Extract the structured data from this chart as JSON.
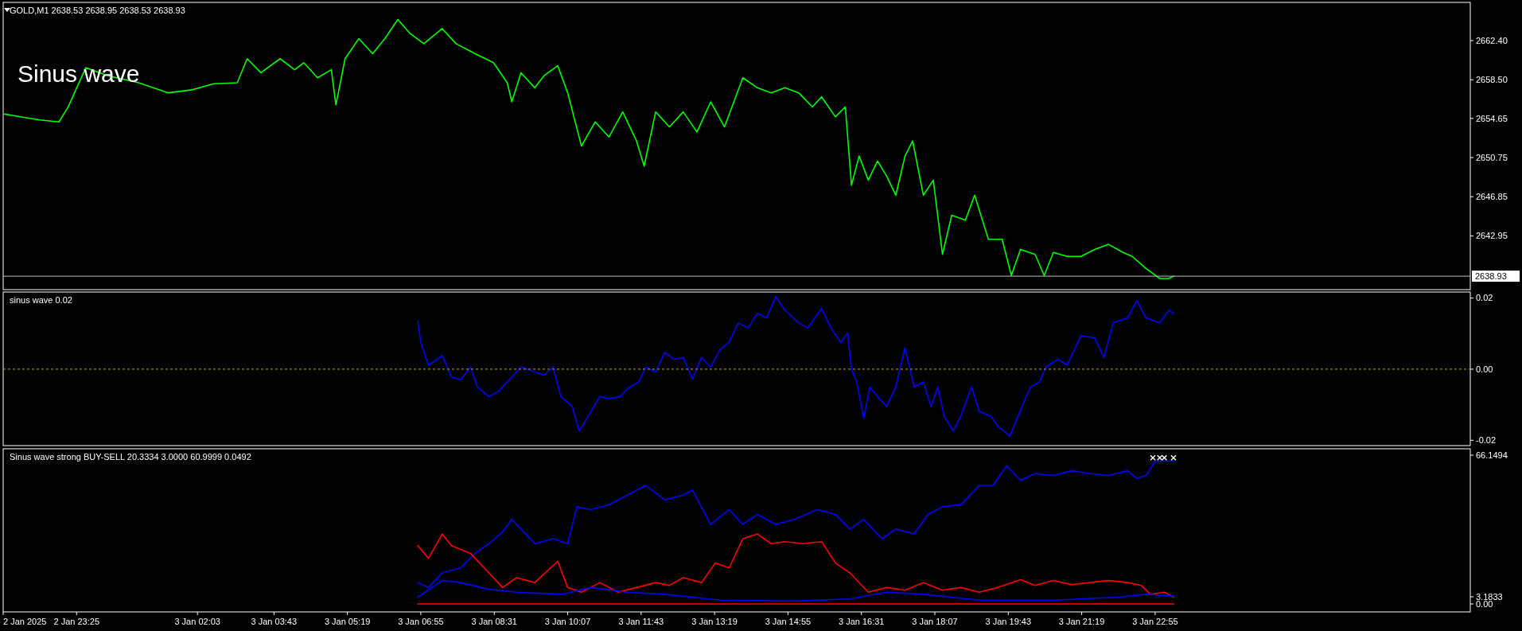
{
  "chart_data": [
    {
      "type": "line",
      "title": "GOLD,M1  2638.53 2638.95 2638.53 2638.93",
      "annotations": [
        "Sinus wave"
      ],
      "xlim": [
        "2025-01-02T21:49",
        "2025-01-04T05:47"
      ],
      "ylim": [
        2637.59,
        2666.21
      ],
      "yticks": [
        {
          "value": 2662.4,
          "label": "2662.40"
        },
        {
          "value": 2658.5,
          "label": "2658.50"
        },
        {
          "value": 2654.65,
          "label": "2654.65"
        },
        {
          "value": 2650.75,
          "label": "2650.75"
        },
        {
          "value": 2646.85,
          "label": "2646.85"
        },
        {
          "value": 2642.95,
          "label": "2642.95"
        }
      ],
      "tick_labels": "y",
      "ref_lines": [
        {
          "axis": "y",
          "value": 2638.93,
          "label": "2638.93",
          "color": "#c0c0c0"
        }
      ],
      "series": [
        {
          "color": "#00ff00",
          "x": [
            "2025-01-02T21:49",
            "2025-01-02T22:13",
            "2025-01-02T22:37",
            "2025-01-02T23:02",
            "2025-01-02T23:14",
            "2025-01-02T23:37",
            "2025-01-03T00:06",
            "2025-01-03T00:46",
            "2025-01-03T01:25",
            "2025-01-03T01:56",
            "2025-01-03T02:24",
            "2025-01-03T02:55",
            "2025-01-03T03:08",
            "2025-01-03T03:26",
            "2025-01-03T03:51",
            "2025-01-03T04:10",
            "2025-01-03T04:22",
            "2025-01-03T04:40",
            "2025-01-03T04:58",
            "2025-01-03T05:04",
            "2025-01-03T05:16",
            "2025-01-03T05:34",
            "2025-01-03T05:52",
            "2025-01-03T06:08",
            "2025-01-03T06:25",
            "2025-01-03T06:41",
            "2025-01-03T06:59",
            "2025-01-03T07:23",
            "2025-01-03T07:41",
            "2025-01-03T08:06",
            "2025-01-03T08:30",
            "2025-01-03T08:48",
            "2025-01-03T08:54",
            "2025-01-03T09:06",
            "2025-01-03T09:24",
            "2025-01-03T09:36",
            "2025-01-03T09:54",
            "2025-01-03T10:07",
            "2025-01-03T10:25",
            "2025-01-03T10:43",
            "2025-01-03T11:01",
            "2025-01-03T11:19",
            "2025-01-03T11:37",
            "2025-01-03T11:47",
            "2025-01-03T12:02",
            "2025-01-03T12:20",
            "2025-01-03T12:38",
            "2025-01-03T12:56",
            "2025-01-03T13:14",
            "2025-01-03T13:32",
            "2025-01-03T13:56",
            "2025-01-03T14:15",
            "2025-01-03T14:33",
            "2025-01-03T14:51",
            "2025-01-03T15:09",
            "2025-01-03T15:27",
            "2025-01-03T15:39",
            "2025-01-03T15:57",
            "2025-01-03T16:10",
            "2025-01-03T16:18",
            "2025-01-03T16:28",
            "2025-01-03T16:40",
            "2025-01-03T16:52",
            "2025-01-03T17:04",
            "2025-01-03T17:16",
            "2025-01-03T17:28",
            "2025-01-03T17:38",
            "2025-01-03T17:52",
            "2025-01-03T18:05",
            "2025-01-03T18:17",
            "2025-01-03T18:29",
            "2025-01-03T18:47",
            "2025-01-03T18:59",
            "2025-01-03T19:17",
            "2025-01-03T19:35",
            "2025-01-03T19:47",
            "2025-01-03T19:59",
            "2025-01-03T20:18",
            "2025-01-03T20:30",
            "2025-01-03T20:42",
            "2025-01-03T21:00",
            "2025-01-03T21:18",
            "2025-01-03T21:36",
            "2025-01-03T21:54",
            "2025-01-03T22:13",
            "2025-01-03T22:25",
            "2025-01-03T22:43",
            "2025-01-03T23:01",
            "2025-01-03T23:13",
            "2025-01-03T23:19"
          ],
          "values": [
            2655.1,
            2654.8,
            2654.5,
            2654.3,
            2655.8,
            2659.7,
            2658.9,
            2658.2,
            2657.2,
            2657.5,
            2658.1,
            2658.2,
            2660.6,
            2659.2,
            2660.6,
            2659.5,
            2660.2,
            2658.7,
            2659.5,
            2656.0,
            2660.6,
            2662.6,
            2661.1,
            2662.6,
            2664.5,
            2663.1,
            2662.1,
            2663.6,
            2662.1,
            2661.1,
            2660.2,
            2658.2,
            2656.3,
            2659.2,
            2657.7,
            2658.9,
            2659.9,
            2657.2,
            2651.9,
            2654.3,
            2652.8,
            2655.3,
            2652.4,
            2649.9,
            2655.3,
            2653.8,
            2655.3,
            2653.3,
            2656.3,
            2653.8,
            2658.7,
            2657.7,
            2657.2,
            2657.7,
            2657.2,
            2655.8,
            2656.8,
            2654.8,
            2655.8,
            2648.0,
            2650.9,
            2648.5,
            2650.4,
            2648.9,
            2647.0,
            2650.9,
            2652.4,
            2647.0,
            2648.5,
            2641.1,
            2645.0,
            2644.5,
            2647.0,
            2642.6,
            2642.6,
            2639.0,
            2641.6,
            2641.1,
            2639.0,
            2641.3,
            2640.9,
            2640.9,
            2641.6,
            2642.1,
            2641.3,
            2640.9,
            2639.7,
            2638.7,
            2638.7,
            2638.93
          ]
        }
      ]
    },
    {
      "type": "line",
      "title": "sinus wave 0.02",
      "xlim": [
        "2025-01-02T21:49",
        "2025-01-04T05:47"
      ],
      "ylim": [
        -0.0215,
        0.0217
      ],
      "yticks": [
        {
          "value": 0.02,
          "label": "0.02"
        },
        {
          "value": 0,
          "label": "0.00"
        },
        {
          "value": -0.02,
          "label": "-0.02"
        }
      ],
      "tick_labels": "y",
      "ref_lines": [
        {
          "axis": "y",
          "value": 0,
          "color": "#d4a017",
          "line_style": "dashed"
        }
      ],
      "series": [
        {
          "color": "#0000ff",
          "x": [
            "2025-01-03T06:51",
            "2025-01-03T06:55",
            "2025-01-03T07:05",
            "2025-01-03T07:17",
            "2025-01-03T07:23",
            "2025-01-03T07:35",
            "2025-01-03T07:47",
            "2025-01-03T08:00",
            "2025-01-03T08:09",
            "2025-01-03T08:24",
            "2025-01-03T08:36",
            "2025-01-03T08:54",
            "2025-01-03T09:06",
            "2025-01-03T09:24",
            "2025-01-03T09:36",
            "2025-01-03T09:48",
            "2025-01-03T09:58",
            "2025-01-03T10:13",
            "2025-01-03T10:22",
            "2025-01-03T10:34",
            "2025-01-03T10:49",
            "2025-01-03T11:01",
            "2025-01-03T11:16",
            "2025-01-03T11:25",
            "2025-01-03T11:40",
            "2025-01-03T11:49",
            "2025-01-03T12:02",
            "2025-01-03T12:14",
            "2025-01-03T12:26",
            "2025-01-03T12:38",
            "2025-01-03T12:50",
            "2025-01-03T13:02",
            "2025-01-03T13:14",
            "2025-01-03T13:26",
            "2025-01-03T13:38",
            "2025-01-03T13:50",
            "2025-01-03T14:03",
            "2025-01-03T14:15",
            "2025-01-03T14:27",
            "2025-01-03T14:39",
            "2025-01-03T14:51",
            "2025-01-03T15:09",
            "2025-01-03T15:21",
            "2025-01-03T15:39",
            "2025-01-03T15:51",
            "2025-01-03T16:04",
            "2025-01-03T16:13",
            "2025-01-03T16:18",
            "2025-01-03T16:25",
            "2025-01-03T16:34",
            "2025-01-03T16:42",
            "2025-01-03T16:52",
            "2025-01-03T17:04",
            "2025-01-03T17:16",
            "2025-01-03T17:28",
            "2025-01-03T17:40",
            "2025-01-03T17:52",
            "2025-01-03T18:02",
            "2025-01-03T18:11",
            "2025-01-03T18:19",
            "2025-01-03T18:31",
            "2025-01-03T18:41",
            "2025-01-03T18:55",
            "2025-01-03T19:05",
            "2025-01-03T19:20",
            "2025-01-03T19:29",
            "2025-01-03T19:45",
            "2025-01-03T19:53",
            "2025-01-03T20:12",
            "2025-01-03T20:24",
            "2025-01-03T20:32",
            "2025-01-03T20:48",
            "2025-01-03T21:00",
            "2025-01-03T21:18",
            "2025-01-03T21:36",
            "2025-01-03T21:48",
            "2025-01-03T22:00",
            "2025-01-03T22:19",
            "2025-01-03T22:31",
            "2025-01-03T22:43",
            "2025-01-03T23:01",
            "2025-01-03T23:13",
            "2025-01-03T23:19"
          ],
          "values": [
            0.0135,
            0.0075,
            0.0011,
            0.0028,
            0.0039,
            -0.0022,
            -0.003,
            0.0006,
            -0.005,
            -0.0077,
            -0.0063,
            -0.0022,
            0.0006,
            -0.0008,
            -0.0017,
            0.0006,
            -0.0077,
            -0.0105,
            -0.0174,
            -0.0132,
            -0.0077,
            -0.0083,
            -0.0077,
            -0.0055,
            -0.0036,
            0.0006,
            -0.0008,
            0.0047,
            0.0028,
            0.0033,
            -0.0028,
            0.0033,
            0.0006,
            0.0055,
            0.0075,
            0.013,
            0.0116,
            0.0157,
            0.0144,
            0.0204,
            0.0166,
            0.013,
            0.0116,
            0.0171,
            0.0116,
            0.0075,
            0.0102,
            0,
            -0.0036,
            -0.0138,
            -0.005,
            -0.0077,
            -0.0105,
            -0.005,
            0.0061,
            -0.005,
            -0.0036,
            -0.0105,
            -0.005,
            -0.0132,
            -0.0174,
            -0.0132,
            -0.005,
            -0.0119,
            -0.0132,
            -0.016,
            -0.0188,
            -0.0146,
            -0.005,
            -0.0036,
            0.0006,
            0.0028,
            0.0011,
            0.0094,
            0.0088,
            0.0033,
            0.013,
            0.0144,
            0.0193,
            0.0144,
            0.013,
            0.0166,
            0.0157
          ]
        }
      ]
    },
    {
      "type": "line",
      "title": "Sinus wave strong BUY-SELL 20.3334 3.0000 60.9999 0.0492",
      "xlim": [
        "2025-01-02T21:49",
        "2025-01-04T05:47"
      ],
      "ylim": [
        -3.54,
        68.98
      ],
      "yticks": [
        66.1494,
        3.1833,
        {
          "value": 0,
          "label": "0.00"
        }
      ],
      "xticks": [
        {
          "value": "2025-01-02T21:49",
          "label": "2 Jan 2025"
        },
        {
          "value": "2025-01-02T23:25",
          "label": "2 Jan 23:25"
        },
        {
          "value": "2025-01-03T02:03",
          "label": "3 Jan 02:03"
        },
        {
          "value": "2025-01-03T03:43",
          "label": "3 Jan 03:43"
        },
        {
          "value": "2025-01-03T05:19",
          "label": "3 Jan 05:19"
        },
        {
          "value": "2025-01-03T06:55",
          "label": "3 Jan 06:55"
        },
        {
          "value": "2025-01-03T08:31",
          "label": "3 Jan 08:31"
        },
        {
          "value": "2025-01-03T10:07",
          "label": "3 Jan 10:07"
        },
        {
          "value": "2025-01-03T11:43",
          "label": "3 Jan 11:43"
        },
        {
          "value": "2025-01-03T13:19",
          "label": "3 Jan 13:19"
        },
        {
          "value": "2025-01-03T14:55",
          "label": "3 Jan 14:55"
        },
        {
          "value": "2025-01-03T16:31",
          "label": "3 Jan 16:31"
        },
        {
          "value": "2025-01-03T18:07",
          "label": "3 Jan 18:07"
        },
        {
          "value": "2025-01-03T19:43",
          "label": "3 Jan 19:43"
        },
        {
          "value": "2025-01-03T21:19",
          "label": "3 Jan 21:19"
        },
        {
          "value": "2025-01-03T22:55",
          "label": "3 Jan 22:55"
        }
      ],
      "series": [
        {
          "color": "#0000ff",
          "x": [
            "2025-01-03T06:51",
            "2025-01-03T07:05",
            "2025-01-03T07:23",
            "2025-01-03T07:47",
            "2025-01-03T08:06",
            "2025-01-03T08:24",
            "2025-01-03T08:42",
            "2025-01-03T08:54",
            "2025-01-03T09:06",
            "2025-01-03T09:24",
            "2025-01-03T09:48",
            "2025-01-03T10:07",
            "2025-01-03T10:19",
            "2025-01-03T10:37",
            "2025-01-03T11:01",
            "2025-01-03T11:25",
            "2025-01-03T11:49",
            "2025-01-03T12:14",
            "2025-01-03T12:38",
            "2025-01-03T12:50",
            "2025-01-03T13:14",
            "2025-01-03T13:38",
            "2025-01-03T13:56",
            "2025-01-03T14:15",
            "2025-01-03T14:39",
            "2025-01-03T15:03",
            "2025-01-03T15:33",
            "2025-01-03T15:57",
            "2025-01-03T16:16",
            "2025-01-03T16:34",
            "2025-01-03T16:58",
            "2025-01-03T17:16",
            "2025-01-03T17:40",
            "2025-01-03T17:58",
            "2025-01-03T18:17",
            "2025-01-03T18:41",
            "2025-01-03T19:05",
            "2025-01-03T19:23",
            "2025-01-03T19:41",
            "2025-01-03T19:59",
            "2025-01-03T20:18",
            "2025-01-03T20:42",
            "2025-01-03T21:06",
            "2025-01-03T21:30",
            "2025-01-03T21:54",
            "2025-01-03T22:19",
            "2025-01-03T22:31",
            "2025-01-03T22:43",
            "2025-01-03T22:55",
            "2025-01-03T23:07",
            "2025-01-03T23:19"
          ],
          "values": [
            9.5,
            7.3,
            13.8,
            16,
            22.5,
            26.8,
            32,
            37.6,
            33.3,
            26.8,
            29,
            26.8,
            43.2,
            41.9,
            44.1,
            48.4,
            52.7,
            46.3,
            48.4,
            50.6,
            35.4,
            41.9,
            35.4,
            39.8,
            35.4,
            37.6,
            41.9,
            39.8,
            33.3,
            37.6,
            29,
            33.3,
            31.1,
            39.8,
            43.2,
            44.1,
            52.7,
            52.7,
            61.4,
            54.9,
            57.9,
            57.1,
            59.2,
            57.9,
            57.1,
            59.2,
            55.8,
            57.1,
            63.5,
            63.5,
            63.5
          ]
        },
        {
          "color": "#ff0000",
          "x": [
            "2025-01-03T06:51",
            "2025-01-03T07:05",
            "2025-01-03T07:23",
            "2025-01-03T07:35",
            "2025-01-03T08:00",
            "2025-01-03T08:24",
            "2025-01-03T08:42",
            "2025-01-03T09:00",
            "2025-01-03T09:24",
            "2025-01-03T09:54",
            "2025-01-03T10:07",
            "2025-01-03T10:25",
            "2025-01-03T10:49",
            "2025-01-03T11:13",
            "2025-01-03T11:37",
            "2025-01-03T12:02",
            "2025-01-03T12:20",
            "2025-01-03T12:38",
            "2025-01-03T13:02",
            "2025-01-03T13:20",
            "2025-01-03T13:38",
            "2025-01-03T13:56",
            "2025-01-03T14:15",
            "2025-01-03T14:33",
            "2025-01-03T14:51",
            "2025-01-03T15:15",
            "2025-01-03T15:39",
            "2025-01-03T15:57",
            "2025-01-03T16:16",
            "2025-01-03T16:40",
            "2025-01-03T17:04",
            "2025-01-03T17:28",
            "2025-01-03T17:52",
            "2025-01-03T18:17",
            "2025-01-03T18:41",
            "2025-01-03T19:05",
            "2025-01-03T19:29",
            "2025-01-03T19:59",
            "2025-01-03T20:18",
            "2025-01-03T20:42",
            "2025-01-03T21:06",
            "2025-01-03T21:30",
            "2025-01-03T21:54",
            "2025-01-03T22:19",
            "2025-01-03T22:37",
            "2025-01-03T22:49",
            "2025-01-03T23:07",
            "2025-01-03T23:19"
          ],
          "values": [
            25.9,
            20.3,
            31.1,
            25.9,
            22.5,
            13.8,
            7.3,
            11.7,
            9.5,
            19,
            7.3,
            5.2,
            9.5,
            5.2,
            7.3,
            9.5,
            8.2,
            11.7,
            9.5,
            18.2,
            16,
            29,
            31.1,
            26.8,
            27.7,
            26.8,
            27.7,
            18.2,
            13.8,
            5.2,
            7.3,
            6.1,
            9.5,
            6.1,
            7.3,
            5.2,
            7.3,
            10.8,
            8.2,
            10.4,
            8.6,
            9.5,
            10.4,
            9.5,
            8.2,
            4.3,
            5.2,
            3.0
          ]
        },
        {
          "color": "#0000ff",
          "x": [
            "2025-01-03T06:51",
            "2025-01-03T07:23",
            "2025-01-03T07:47",
            "2025-01-03T08:24",
            "2025-01-03T09:00",
            "2025-01-03T10:01",
            "2025-01-03T10:37",
            "2025-01-03T11:25",
            "2025-01-03T12:14",
            "2025-01-03T13:26",
            "2025-01-03T15:03",
            "2025-01-03T16:16",
            "2025-01-03T17:04",
            "2025-01-03T17:52",
            "2025-01-03T19:05",
            "2025-01-03T20:42",
            "2025-01-03T22:07",
            "2025-01-03T22:43",
            "2025-01-03T23:19"
          ],
          "values": [
            3,
            10.4,
            9.5,
            6.5,
            5.2,
            4.3,
            7.3,
            5.2,
            4.3,
            1.7,
            1.3,
            2.2,
            5.2,
            4.3,
            1.7,
            1.7,
            3,
            4.3,
            3.5
          ]
        },
        {
          "color": "#ff0000",
          "x": [
            "2025-01-03T06:51",
            "2025-01-03T23:19"
          ],
          "values": [
            0,
            0
          ]
        },
        {
          "type": "scatter",
          "marker": "cross",
          "color": "#ffffff",
          "x": [
            "2025-01-03T22:52",
            "2025-01-03T23:01",
            "2025-01-03T23:07",
            "2025-01-03T23:19"
          ],
          "values": [
            65,
            65,
            65,
            65
          ]
        }
      ]
    }
  ]
}
